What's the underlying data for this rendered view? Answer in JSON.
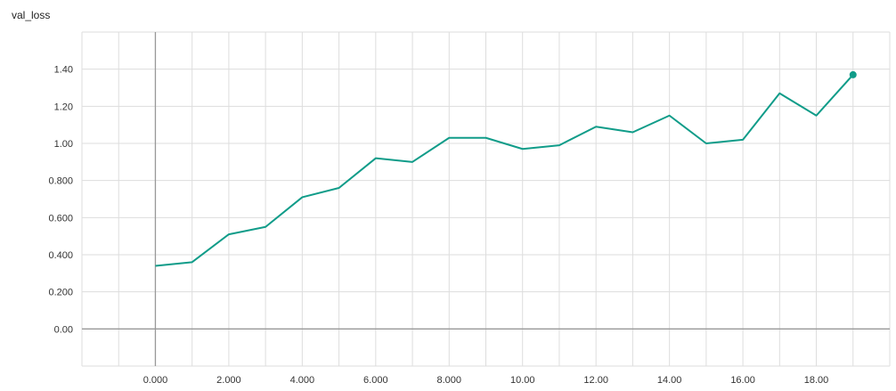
{
  "chart_data": {
    "type": "line",
    "title": "val_loss",
    "xlabel": "",
    "ylabel": "",
    "x": [
      0,
      1,
      2,
      3,
      4,
      5,
      6,
      7,
      8,
      9,
      10,
      11,
      12,
      13,
      14,
      15,
      16,
      17,
      18,
      19
    ],
    "series": [
      {
        "values": [
          0.34,
          0.36,
          0.51,
          0.55,
          0.71,
          0.76,
          0.92,
          0.9,
          1.03,
          1.03,
          0.97,
          0.99,
          1.09,
          1.06,
          1.15,
          1.0,
          1.02,
          1.27,
          1.15,
          1.37
        ],
        "color": "#109c89"
      }
    ],
    "x_ticks": [
      0,
      2,
      4,
      6,
      8,
      10,
      12,
      14,
      16,
      18
    ],
    "x_tick_labels": [
      "0.000",
      "2.000",
      "4.000",
      "6.000",
      "8.000",
      "10.00",
      "12.00",
      "14.00",
      "16.00",
      "18.00"
    ],
    "y_ticks": [
      0,
      0.2,
      0.4,
      0.6,
      0.8,
      1.0,
      1.2,
      1.4
    ],
    "y_tick_labels": [
      "0.00",
      "0.200",
      "0.400",
      "0.600",
      "0.800",
      "1.00",
      "1.20",
      "1.40"
    ],
    "xlim": [
      -2,
      20
    ],
    "ylim": [
      -0.2,
      1.6
    ],
    "grid": true,
    "axis_color": "#999999",
    "grid_color": "#dddddd"
  }
}
